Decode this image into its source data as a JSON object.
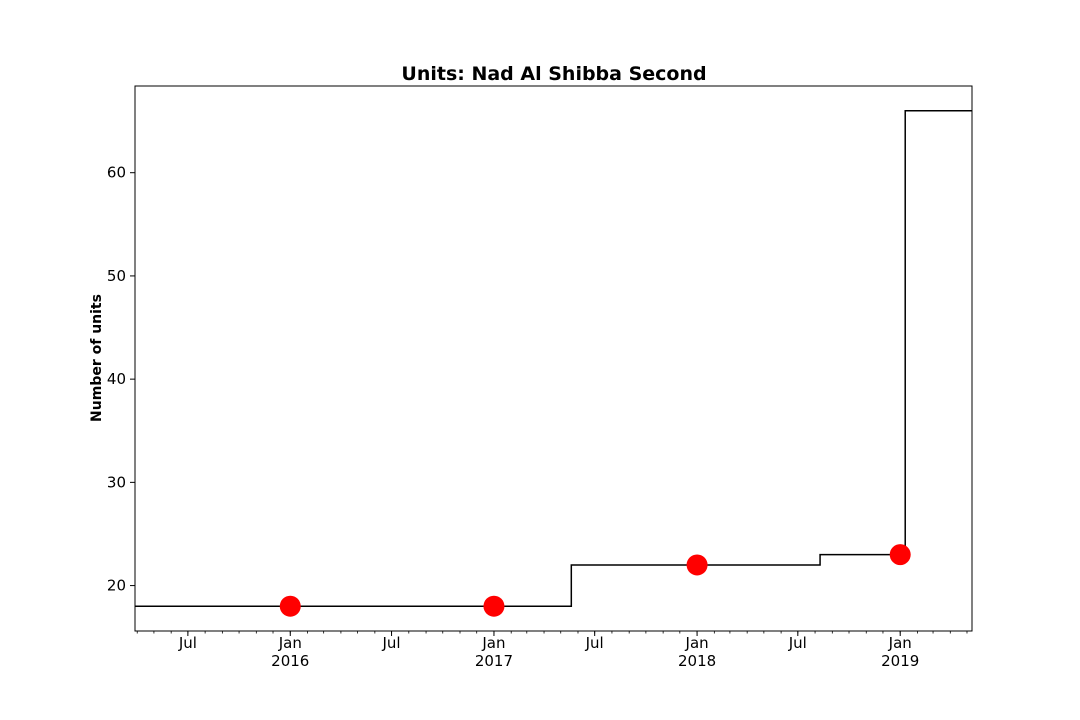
{
  "chart_data": {
    "type": "line",
    "title": "Units: Nad Al Shibba Second",
    "xlabel": "",
    "ylabel": "Number of units",
    "xlim": [
      "2015-03-28",
      "2019-05-10"
    ],
    "ylim": [
      15.6,
      68.4
    ],
    "y_ticks": [
      20,
      30,
      40,
      50,
      60
    ],
    "x_ticks": [
      {
        "date": "2015-07-01",
        "label": "Jul",
        "sublabel": ""
      },
      {
        "date": "2016-01-01",
        "label": "Jan",
        "sublabel": "2016"
      },
      {
        "date": "2016-07-01",
        "label": "Jul",
        "sublabel": ""
      },
      {
        "date": "2017-01-01",
        "label": "Jan",
        "sublabel": "2017"
      },
      {
        "date": "2017-07-01",
        "label": "Jul",
        "sublabel": ""
      },
      {
        "date": "2018-01-01",
        "label": "Jan",
        "sublabel": "2018"
      },
      {
        "date": "2018-07-01",
        "label": "Jul",
        "sublabel": ""
      },
      {
        "date": "2019-01-01",
        "label": "Jan",
        "sublabel": "2019"
      }
    ],
    "grid": false,
    "legend": "none",
    "series": [
      {
        "style": "step",
        "color": "#000000",
        "points": [
          {
            "x": "2015-03-28",
            "y": 18
          },
          {
            "x": "2017-05-20",
            "y": 22
          },
          {
            "x": "2018-08-10",
            "y": 23
          },
          {
            "x": "2019-01-10",
            "y": 66
          },
          {
            "x": "2019-05-10",
            "y": 66
          }
        ]
      },
      {
        "style": "marker",
        "color": "#ff0000",
        "points": [
          {
            "x": "2016-01-01",
            "y": 18
          },
          {
            "x": "2017-01-01",
            "y": 18
          },
          {
            "x": "2018-01-01",
            "y": 22
          },
          {
            "x": "2019-01-01",
            "y": 23
          }
        ]
      }
    ]
  }
}
